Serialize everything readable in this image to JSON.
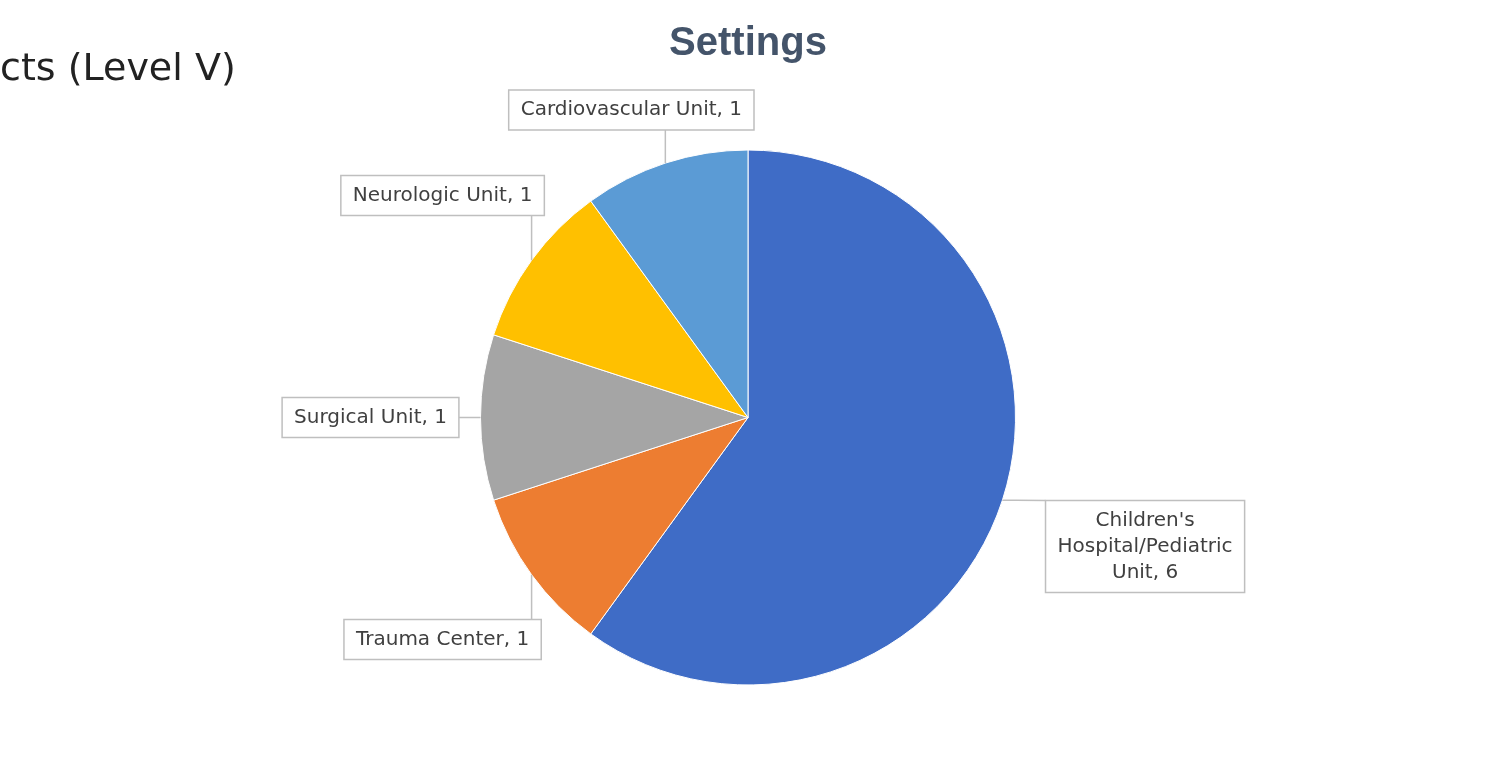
{
  "chart_data": {
    "type": "pie",
    "title": "Settings",
    "categories": [
      "Children's Hospital/Pediatric Unit",
      "Trauma Center",
      "Surgical Unit",
      "Neurologic Unit",
      "Cardiovascular Unit"
    ],
    "values": [
      6,
      1,
      1,
      1,
      1
    ],
    "value_labels": [
      "6",
      "1",
      "1",
      "1",
      "1"
    ],
    "colors": [
      "#3f6cc6",
      "#ed7d31",
      "#a5a5a5",
      "#ffc000",
      "#5b9bd5"
    ],
    "annotations": [
      "cts (Level V)"
    ]
  }
}
